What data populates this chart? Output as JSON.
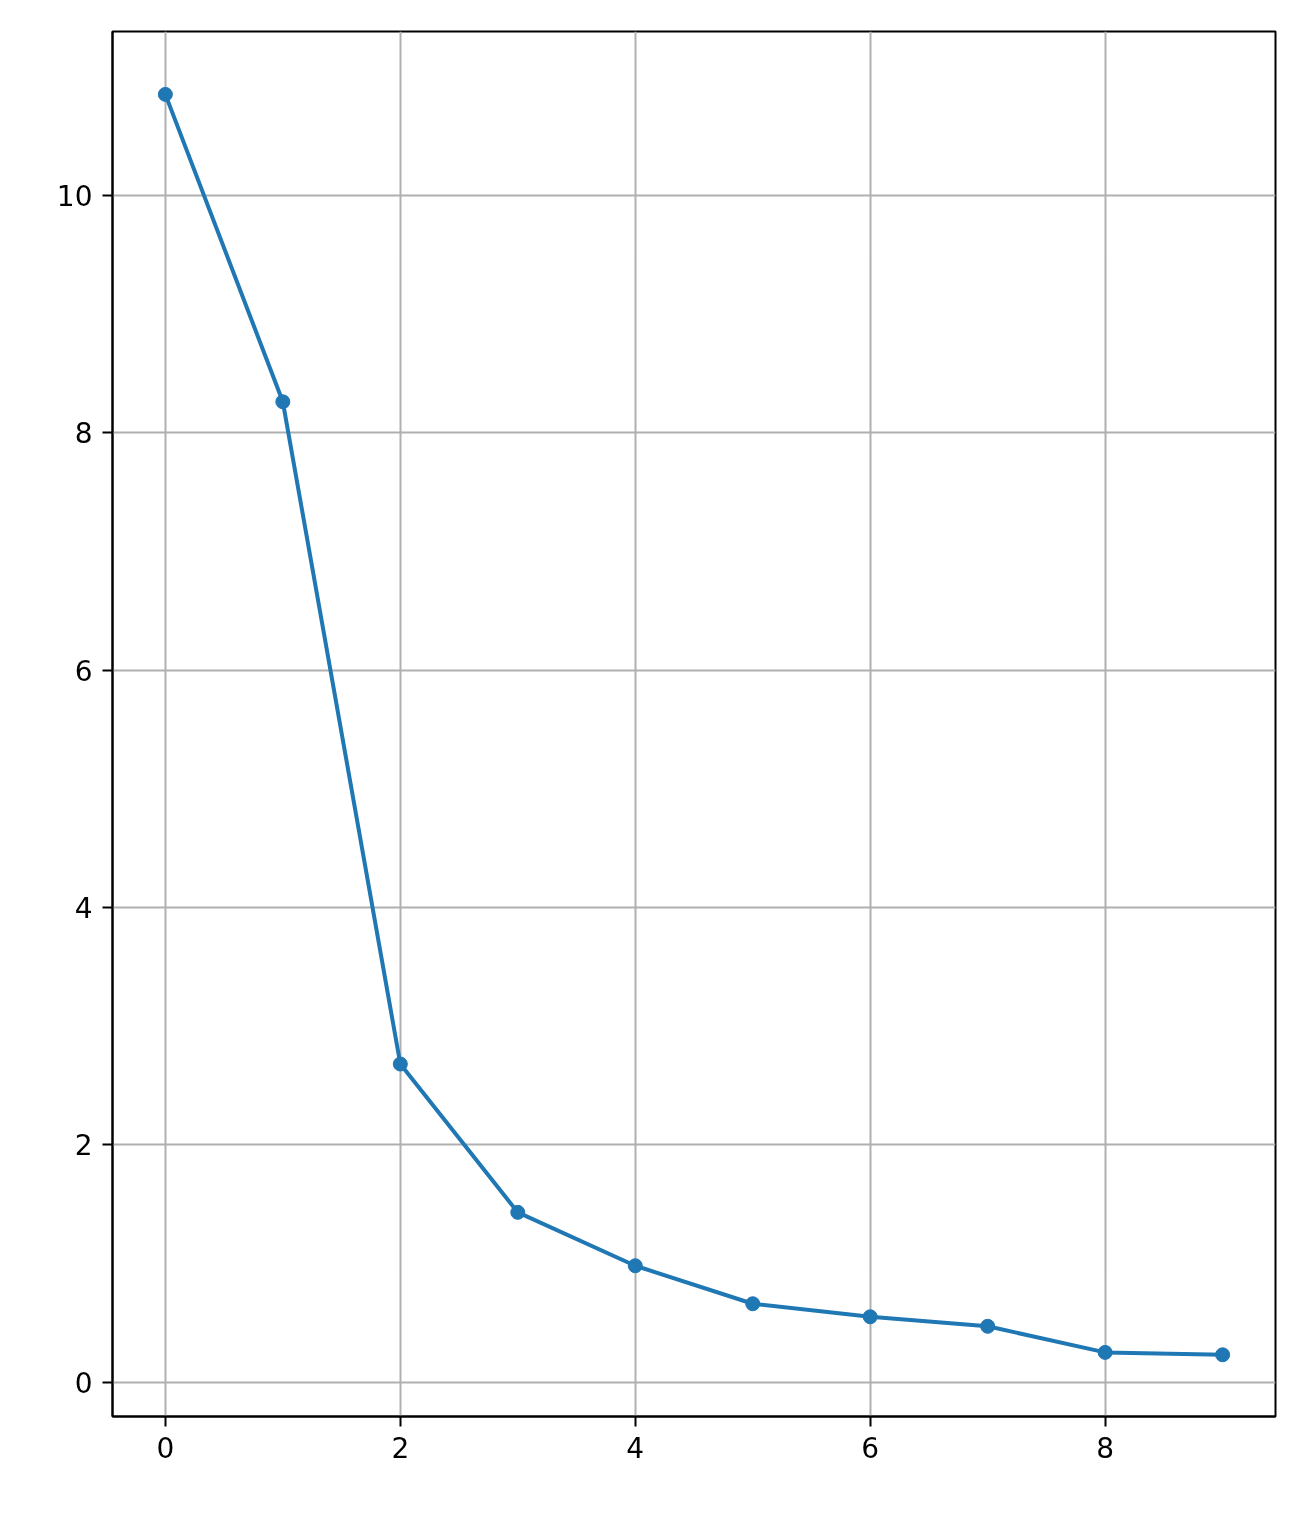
{
  "chart_data": {
    "type": "line",
    "x": [
      0,
      1,
      2,
      3,
      4,
      5,
      6,
      7,
      8,
      9
    ],
    "series": [
      {
        "color": "#1f77b4",
        "values": [
          10.85,
          8.26,
          2.68,
          1.43,
          0.98,
          0.66,
          0.55,
          0.47,
          0.25,
          0.23
        ]
      }
    ],
    "xlim": [
      -0.45,
      9.45
    ],
    "ylim": [
      -0.29,
      11.38
    ],
    "xticks": [
      0,
      2,
      4,
      6,
      8
    ],
    "yticks": [
      0,
      2,
      4,
      6,
      8,
      10
    ],
    "grid": true,
    "marker": "circle",
    "line_style": "solid"
  }
}
